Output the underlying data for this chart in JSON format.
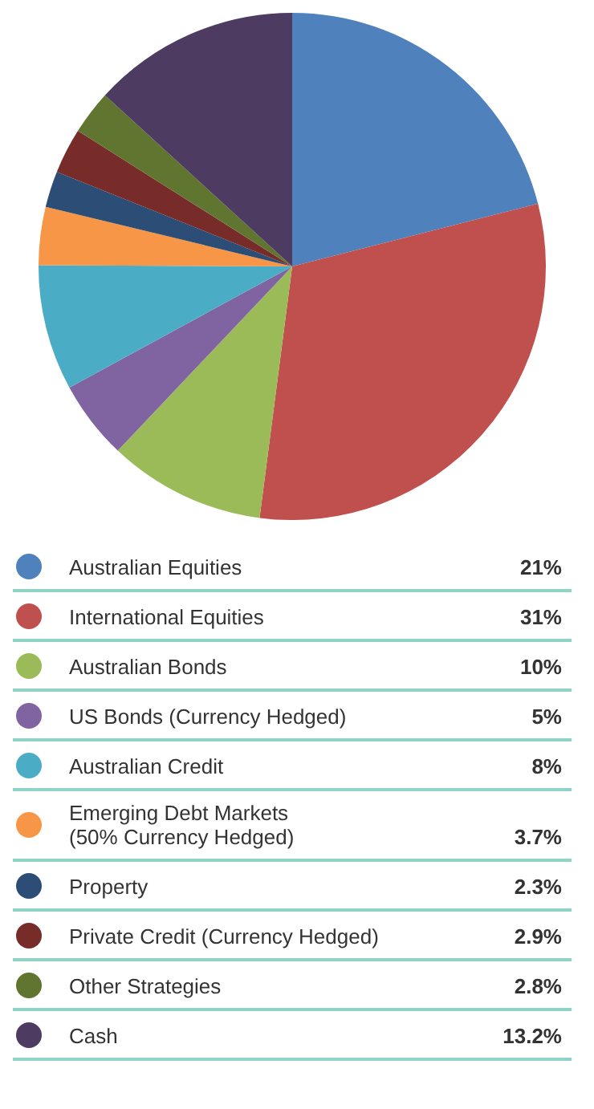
{
  "chart_data": {
    "type": "pie",
    "categories": [
      "Australian Equities",
      "International Equities",
      "Australian Bonds",
      "US Bonds (Currency Hedged)",
      "Australian Credit",
      "Emerging Debt Markets\n(50% Currency Hedged)",
      "Property",
      "Private Credit (Currency Hedged)",
      "Other Strategies",
      "Cash"
    ],
    "values": [
      21,
      31,
      10,
      5,
      8,
      3.7,
      2.3,
      2.9,
      2.8,
      13.2
    ],
    "value_labels": [
      "21%",
      "31%",
      "10%",
      "5%",
      "8%",
      "3.7%",
      "2.3%",
      "2.9%",
      "2.8%",
      "13.2%"
    ],
    "colors": [
      "#4f81bd",
      "#c0504d",
      "#9bbb59",
      "#8064a2",
      "#4bacc6",
      "#f79646",
      "#2c4d75",
      "#772c2a",
      "#5f7530",
      "#4d3b62"
    ],
    "legend": "bottom"
  }
}
